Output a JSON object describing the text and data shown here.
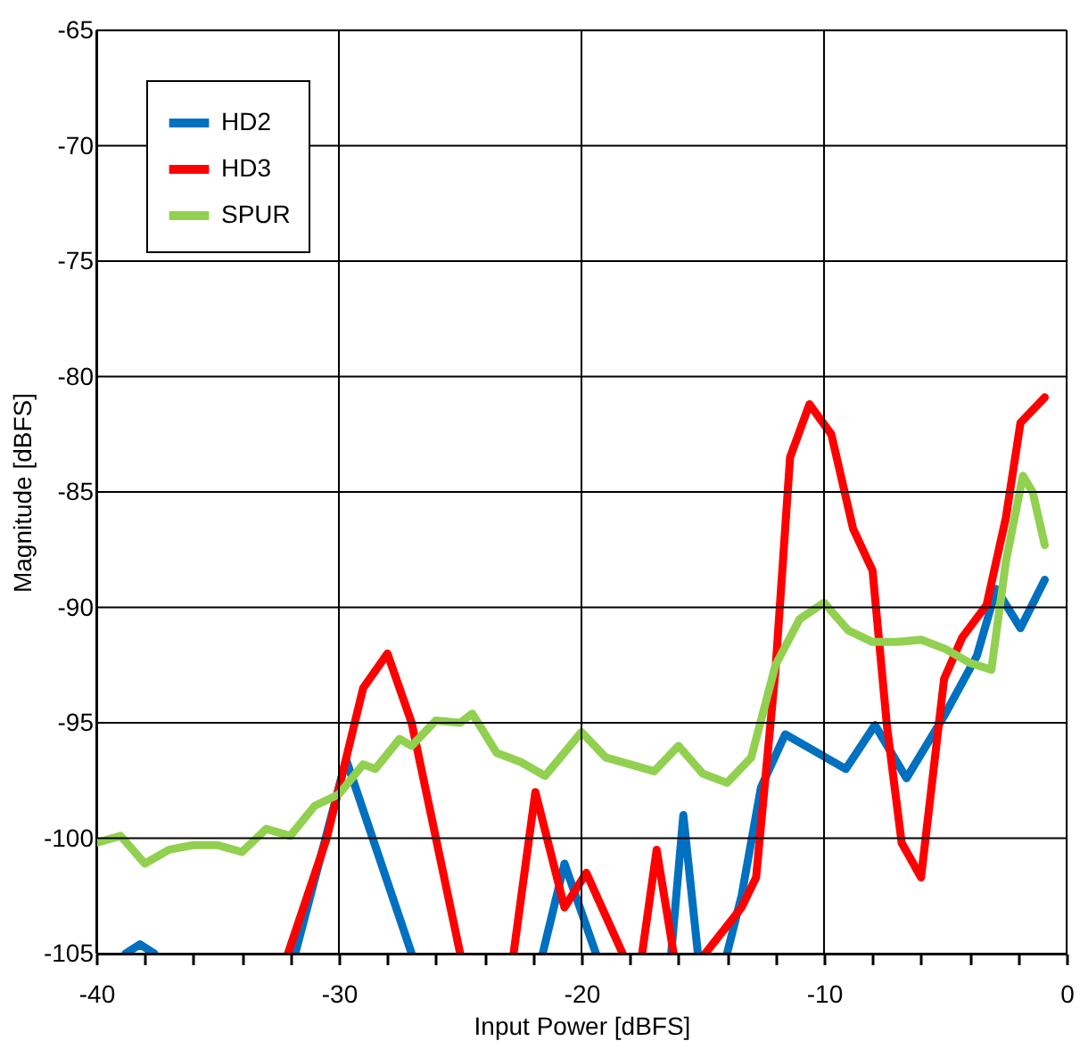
{
  "chart_data": {
    "type": "line",
    "xlabel": "Input Power [dBFS]",
    "ylabel": "Magnitude [dBFS]",
    "xlim": [
      -40,
      0
    ],
    "xticks": [
      -40,
      {
        "value": -38,
        "label": null
      },
      {
        "value": -36,
        "label": null
      },
      {
        "value": -34,
        "label": null
      },
      {
        "value": -32,
        "label": null
      },
      -30,
      {
        "value": -28,
        "label": null
      },
      {
        "value": -26,
        "label": null
      },
      {
        "value": -24,
        "label": null
      },
      {
        "value": -22,
        "label": null
      },
      -20,
      {
        "value": -18,
        "label": null
      },
      {
        "value": -16,
        "label": null
      },
      {
        "value": -14,
        "label": null
      },
      {
        "value": -12,
        "label": null
      },
      -10,
      {
        "value": -8,
        "label": null
      },
      {
        "value": -6,
        "label": null
      },
      {
        "value": -4,
        "label": null
      },
      {
        "value": -2,
        "label": null
      },
      0
    ],
    "ylim": [
      -105,
      -65
    ],
    "yticks": [
      -105,
      -100,
      -95,
      -90,
      -85,
      -80,
      -75,
      -70,
      -65
    ],
    "grid": true,
    "legend": "top left",
    "line_style": "solid",
    "marker": "none",
    "series": [
      {
        "name": "HD2",
        "color": "#0070c0",
        "x": [
          -38.8,
          -38.2,
          -37.6,
          -36,
          -31.8,
          -29.7,
          -27.0,
          -24,
          -21.6,
          -20.7,
          -19.4,
          -18,
          -16.3,
          -15.8,
          -15.2,
          -14.6,
          -14.0,
          -13.4,
          -12.6,
          -11.6,
          -9.1,
          -7.9,
          -6.6,
          -5.05,
          -3.7,
          -2.9,
          -1.9,
          -0.9
        ],
        "values": [
          -105,
          -104.6,
          -105,
          null,
          -105,
          -96.6,
          -105,
          null,
          -105,
          -101.1,
          -105,
          null,
          -105,
          -99,
          -105,
          null,
          -105,
          -102.5,
          -97.8,
          -95.5,
          -97.0,
          -95.1,
          -97.4,
          -94.7,
          -92.1,
          -89.2,
          -90.9,
          -88.8
        ]
      },
      {
        "name": "HD3",
        "color": "#ff0000",
        "x": [
          -32.1,
          -30.5,
          -29,
          -28.0,
          -27,
          -25.0,
          -24,
          -22.8,
          -21.9,
          -20.7,
          -19.8,
          -18.3,
          -18,
          -17.5,
          -16.9,
          -16.2,
          -15.5,
          -14.9,
          -13.4,
          -12.8,
          -12.0,
          -11.4,
          -10.6,
          -9.7,
          -8.8,
          -8.0,
          -7.4,
          -6.8,
          -6.0,
          -5.05,
          -4.3,
          -3.3,
          -2.5,
          -1.9,
          -0.9
        ],
        "values": [
          -105,
          -100,
          -93.5,
          -92.0,
          -95,
          -105,
          null,
          -105,
          -98.0,
          -103.0,
          -101.5,
          -105,
          null,
          -105,
          -100.5,
          -105,
          null,
          -105,
          -103,
          -101.7,
          -92.7,
          -83.5,
          -81.2,
          -82.5,
          -86.6,
          -88.4,
          -95.2,
          -100.2,
          -101.7,
          -93.1,
          -91.3,
          -89.9,
          -86.1,
          -82,
          -80.9
        ]
      },
      {
        "name": "SPUR",
        "color": "#92d050",
        "x": [
          -40,
          -39,
          -38,
          -37,
          -36,
          -35,
          -34,
          -33,
          -32,
          -31,
          -30,
          -29,
          -28.5,
          -27.5,
          -27,
          -26,
          -25,
          -24.5,
          -23.5,
          -22.5,
          -21.5,
          -20,
          -19,
          -18,
          -17,
          -16,
          -15,
          -14,
          -13,
          -12,
          -11,
          -10,
          -9,
          -8,
          -7,
          -6,
          -5,
          -4,
          -3.1,
          -2.5,
          -1.8,
          -1.4,
          -0.9
        ],
        "values": [
          -100.2,
          -99.9,
          -101.1,
          -100.5,
          -100.3,
          -100.3,
          -100.6,
          -99.6,
          -99.9,
          -98.6,
          -98.1,
          -96.8,
          -97.0,
          -95.7,
          -96.0,
          -94.9,
          -95.0,
          -94.6,
          -96.3,
          -96.7,
          -97.3,
          -95.4,
          -96.5,
          -96.8,
          -97.1,
          -96.0,
          -97.2,
          -97.6,
          -96.5,
          -92.5,
          -90.5,
          -89.8,
          -91.0,
          -91.5,
          -91.5,
          -91.4,
          -91.8,
          -92.4,
          -92.7,
          -88,
          -84.3,
          -85,
          -87.3
        ]
      }
    ]
  }
}
